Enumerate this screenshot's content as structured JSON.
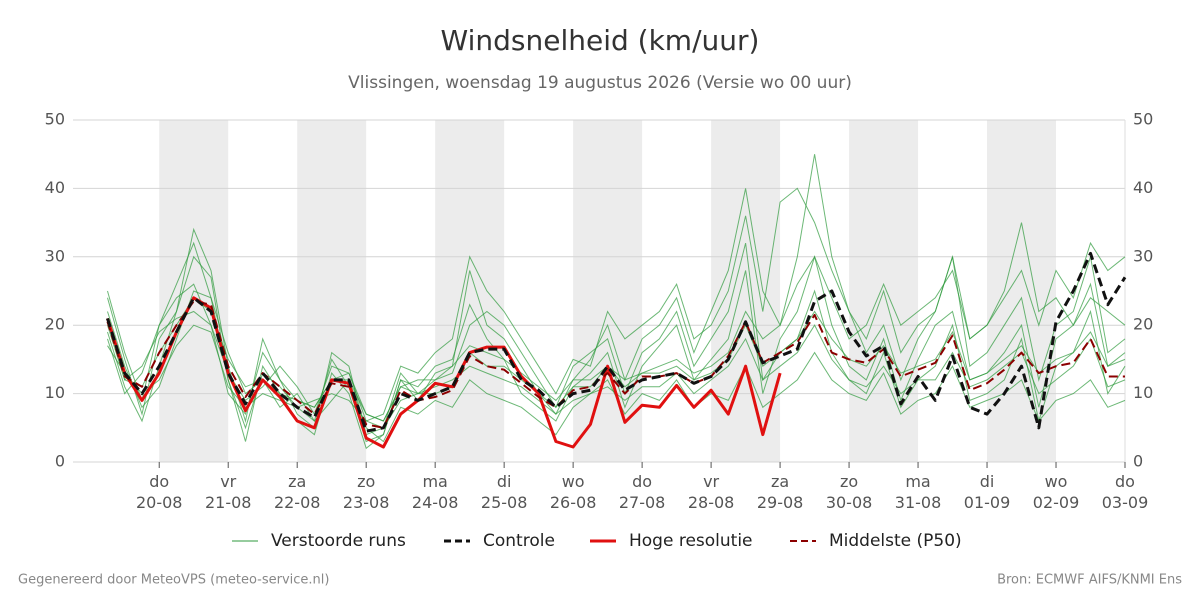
{
  "chart_data": {
    "type": "line",
    "title": "Windsnelheid (km/uur)",
    "subtitle": "Vlissingen, woensdag 19 augustus 2026 (Versie wo 00 uur)",
    "x": [
      -0.75,
      -0.5,
      -0.25,
      0,
      0.25,
      0.5,
      0.75,
      1,
      1.25,
      1.5,
      1.75,
      2,
      2.25,
      2.5,
      2.75,
      3,
      3.25,
      3.5,
      3.75,
      4,
      4.25,
      4.5,
      4.75,
      5,
      5.25,
      5.5,
      5.75,
      6,
      6.25,
      6.5,
      6.75,
      7,
      7.25,
      7.5,
      7.75,
      8,
      8.25,
      8.5,
      8.75,
      9,
      9.25,
      9.5,
      9.75,
      10,
      10.25,
      10.5,
      10.75,
      11,
      11.25,
      11.5,
      11.75,
      12,
      12.25,
      12.5,
      12.75,
      13,
      13.25,
      13.5,
      13.75,
      14
    ],
    "xlim": [
      -1.25,
      14
    ],
    "xticks": [
      {
        "value": 0,
        "label": "do 20-08"
      },
      {
        "value": 1,
        "label": "vr 21-08"
      },
      {
        "value": 2,
        "label": "za 22-08"
      },
      {
        "value": 3,
        "label": "zo 23-08"
      },
      {
        "value": 4,
        "label": "ma 24-08"
      },
      {
        "value": 5,
        "label": "di 25-08"
      },
      {
        "value": 6,
        "label": "wo 26-08"
      },
      {
        "value": 7,
        "label": "do 27-08"
      },
      {
        "value": 8,
        "label": "vr 28-08"
      },
      {
        "value": 9,
        "label": "za 29-08"
      },
      {
        "value": 10,
        "label": "zo 30-08"
      },
      {
        "value": 11,
        "label": "ma 31-08"
      },
      {
        "value": 12,
        "label": "di 01-09"
      },
      {
        "value": 13,
        "label": "wo 02-09"
      },
      {
        "value": 14,
        "label": "do 03-09"
      }
    ],
    "ylim": [
      0,
      50
    ],
    "yticks": [
      0,
      10,
      20,
      30,
      40,
      50
    ],
    "grid": true,
    "ensemble": {
      "name": "Verstoorde runs",
      "color": "#2e9a3c",
      "runs": [
        [
          24,
          15,
          7,
          18,
          22,
          30,
          27,
          12,
          3,
          14,
          10,
          6,
          4,
          13,
          10,
          2,
          4,
          12,
          11,
          14,
          15,
          23,
          18,
          15,
          10,
          8,
          6,
          11,
          13,
          16,
          8,
          14,
          17,
          20,
          12,
          15,
          18,
          28,
          10,
          18,
          22,
          30,
          20,
          14,
          12,
          18,
          9,
          15,
          20,
          22,
          12,
          13,
          16,
          20,
          8,
          18,
          20,
          26,
          14,
          16
        ],
        [
          18,
          10,
          13,
          20,
          24,
          26,
          20,
          10,
          7,
          16,
          12,
          9,
          8,
          12,
          13,
          6,
          7,
          14,
          13,
          16,
          18,
          30,
          25,
          22,
          18,
          14,
          10,
          15,
          14,
          22,
          18,
          20,
          22,
          26,
          18,
          20,
          25,
          36,
          22,
          38,
          40,
          35,
          28,
          22,
          18,
          25,
          16,
          20,
          22,
          30,
          18,
          20,
          24,
          28,
          20,
          28,
          24,
          32,
          28,
          30
        ],
        [
          22,
          14,
          8,
          11,
          18,
          25,
          24,
          16,
          10,
          12,
          8,
          10,
          6,
          9,
          12,
          5,
          3,
          8,
          7,
          9,
          8,
          12,
          10,
          9,
          8,
          6,
          4,
          8,
          10,
          12,
          7,
          10,
          9,
          12,
          8,
          10,
          9,
          14,
          8,
          10,
          12,
          16,
          12,
          10,
          9,
          13,
          7,
          9,
          10,
          14,
          8,
          9,
          10,
          12,
          6,
          9,
          10,
          12,
          8,
          9
        ],
        [
          20,
          12,
          14,
          19,
          21,
          22,
          20,
          13,
          9,
          11,
          14,
          11,
          7,
          14,
          13,
          7,
          6,
          11,
          12,
          12,
          14,
          17,
          16,
          15,
          13,
          11,
          9,
          12,
          12,
          14,
          12,
          13,
          14,
          15,
          13,
          14,
          16,
          22,
          18,
          20,
          26,
          30,
          24,
          18,
          20,
          26,
          20,
          22,
          24,
          28,
          18,
          20,
          25,
          35,
          22,
          24,
          20,
          24,
          22,
          20
        ],
        [
          19,
          11,
          6,
          14,
          22,
          34,
          28,
          14,
          6,
          18,
          12,
          7,
          5,
          16,
          14,
          4,
          5,
          13,
          10,
          12,
          13,
          20,
          22,
          20,
          16,
          12,
          8,
          14,
          16,
          18,
          10,
          16,
          18,
          22,
          14,
          18,
          22,
          32,
          12,
          16,
          18,
          25,
          16,
          12,
          10,
          16,
          8,
          12,
          14,
          20,
          9,
          10,
          12,
          18,
          6,
          14,
          16,
          22,
          10,
          14
        ],
        [
          17,
          13,
          10,
          12,
          17,
          20,
          19,
          11,
          8,
          10,
          9,
          8,
          9,
          10,
          9,
          6,
          5,
          9,
          10,
          11,
          12,
          14,
          13,
          12,
          11,
          9,
          7,
          9,
          10,
          11,
          9,
          11,
          11,
          13,
          10,
          12,
          14,
          18,
          12,
          14,
          16,
          20,
          15,
          12,
          11,
          14,
          10,
          12,
          12,
          16,
          11,
          12,
          14,
          16,
          10,
          12,
          14,
          18,
          11,
          12
        ],
        [
          25,
          16,
          9,
          20,
          26,
          32,
          24,
          12,
          5,
          13,
          11,
          8,
          6,
          15,
          11,
          3,
          4,
          12,
          9,
          13,
          14,
          28,
          20,
          18,
          14,
          10,
          7,
          12,
          15,
          20,
          12,
          18,
          20,
          24,
          16,
          22,
          28,
          40,
          25,
          20,
          30,
          45,
          30,
          22,
          16,
          20,
          12,
          18,
          22,
          30,
          14,
          16,
          20,
          24,
          12,
          20,
          22,
          30,
          16,
          18
        ],
        [
          21,
          12,
          11,
          16,
          20,
          24,
          22,
          15,
          11,
          12,
          10,
          9,
          8,
          12,
          12,
          7,
          6,
          11,
          10,
          10,
          11,
          16,
          14,
          14,
          12,
          10,
          8,
          11,
          11,
          14,
          11,
          13,
          13,
          14,
          12,
          13,
          15,
          20,
          14,
          16,
          18,
          22,
          18,
          15,
          14,
          17,
          13,
          14,
          15,
          19,
          12,
          13,
          15,
          17,
          13,
          15,
          16,
          19,
          14,
          15
        ]
      ]
    },
    "series": [
      {
        "name": "Controle",
        "color": "#111111",
        "dashed": true,
        "width": 3,
        "values": [
          21,
          13,
          10,
          14,
          19,
          24,
          22,
          13,
          8.5,
          13,
          10,
          8,
          6.5,
          12,
          12,
          4.5,
          5,
          10,
          9,
          10,
          11,
          16,
          16.5,
          16.5,
          12,
          10.5,
          8,
          10,
          10.5,
          14,
          10.5,
          12,
          12.5,
          13,
          11.5,
          12.5,
          15,
          20.5,
          14.5,
          15.5,
          16.5,
          23.5,
          25,
          19,
          15.5,
          17,
          8.5,
          12.5,
          9,
          15.5,
          8,
          7,
          10,
          14,
          5,
          20.5,
          25,
          30.5,
          23,
          27
        ]
      },
      {
        "name": "Hoge resolutie",
        "color": "#e01010",
        "dashed": false,
        "width": 3,
        "values": [
          21,
          13,
          9,
          13,
          19,
          24,
          22.5,
          13,
          7.5,
          12,
          9.5,
          6,
          5,
          12,
          11.5,
          3.5,
          2.2,
          7,
          9,
          11.5,
          11,
          16,
          16.8,
          16.8,
          12.5,
          10,
          3,
          2.2,
          5.5,
          14,
          5.8,
          8.3,
          8,
          11.2,
          8,
          10.5,
          7,
          14,
          4,
          13,
          null,
          null,
          null,
          null,
          null,
          null,
          null,
          null,
          null,
          null,
          null,
          null,
          null,
          null,
          null,
          null,
          null,
          null,
          null,
          null
        ]
      },
      {
        "name": "Middelste (P50)",
        "color": "#8b0000",
        "dashed": true,
        "width": 2,
        "values": [
          20.5,
          12.5,
          11,
          16,
          20,
          23.5,
          23,
          14,
          9.5,
          13,
          11,
          9,
          7,
          11.5,
          11,
          5.5,
          5,
          10.5,
          9,
          9.5,
          10.5,
          15.5,
          14,
          13.5,
          11.5,
          9.5,
          8,
          10.5,
          11,
          13,
          10,
          12.5,
          12.5,
          13,
          11.5,
          12.5,
          15.5,
          20.5,
          14.5,
          16,
          17.5,
          21.5,
          16,
          15,
          14.5,
          16.5,
          12.5,
          13.5,
          14.5,
          18.5,
          10.5,
          11.5,
          13.5,
          16,
          13,
          14,
          14.5,
          18,
          12.5,
          12.5
        ]
      }
    ]
  },
  "footer": {
    "left": "Gegenereerd door MeteoVPS (meteo-service.nl)",
    "right": "Bron: ECMWF AIFS/KNMI Ens"
  }
}
